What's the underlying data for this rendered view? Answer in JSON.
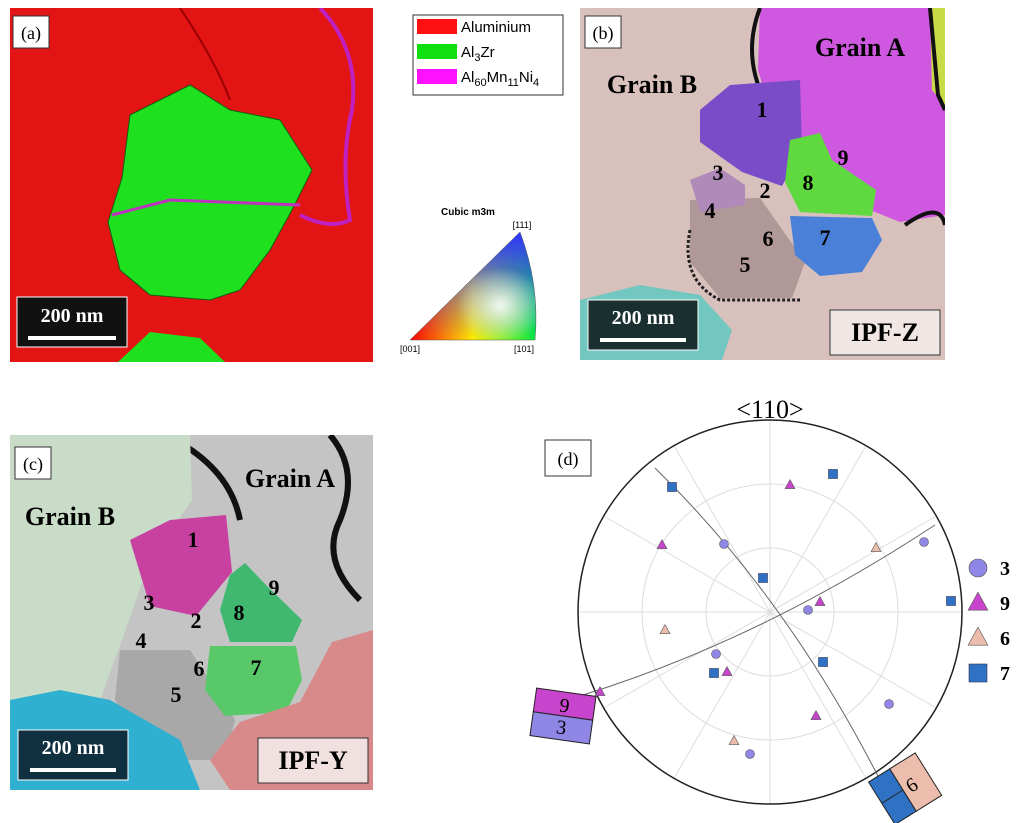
{
  "panel_a": {
    "label": "(a)",
    "scale_bar": "200 nm"
  },
  "phase_legend": {
    "items": [
      {
        "parts": [
          {
            "text": "Aluminium"
          }
        ],
        "color": "#ff1010"
      },
      {
        "parts": [
          {
            "text": "Al"
          },
          {
            "text": "3",
            "sub": true
          },
          {
            "text": "Zr"
          }
        ],
        "color": "#10e010"
      },
      {
        "parts": [
          {
            "text": "Al"
          },
          {
            "text": "60",
            "sub": true
          },
          {
            "text": "Mn"
          },
          {
            "text": "11",
            "sub": true
          },
          {
            "text": "Ni"
          },
          {
            "text": "4",
            "sub": true
          }
        ],
        "color": "#ff10ff"
      }
    ]
  },
  "ipf_key": {
    "title": "Cubic m3m",
    "corners": [
      "[111]",
      "[001]",
      "[101]"
    ]
  },
  "panel_b": {
    "label": "(b)",
    "grain_a": "Grain A",
    "grain_b": "Grain B",
    "grain_numbers": [
      "1",
      "2",
      "3",
      "4",
      "5",
      "6",
      "7",
      "8",
      "9"
    ],
    "scale_bar": "200 nm",
    "map_type": "IPF-Z"
  },
  "panel_c": {
    "label": "(c)",
    "grain_a": "Grain A",
    "grain_b": "Grain B",
    "grain_numbers": [
      "1",
      "2",
      "3",
      "4",
      "5",
      "6",
      "7",
      "8",
      "9"
    ],
    "scale_bar": "200 nm",
    "map_type": "IPF-Y"
  },
  "panel_d": {
    "label": "(d)",
    "title": "<110>",
    "legend": [
      {
        "label": "3",
        "marker": "circle",
        "color": "#8f86e6"
      },
      {
        "label": "9",
        "marker": "triangle",
        "color": "#c844cc"
      },
      {
        "label": "6",
        "marker": "triangle",
        "color": "#ecbcac"
      },
      {
        "label": "7",
        "marker": "square",
        "color": "#2f72c4"
      }
    ],
    "box_left": [
      "9",
      "3"
    ],
    "box_right": [
      "6"
    ]
  }
}
